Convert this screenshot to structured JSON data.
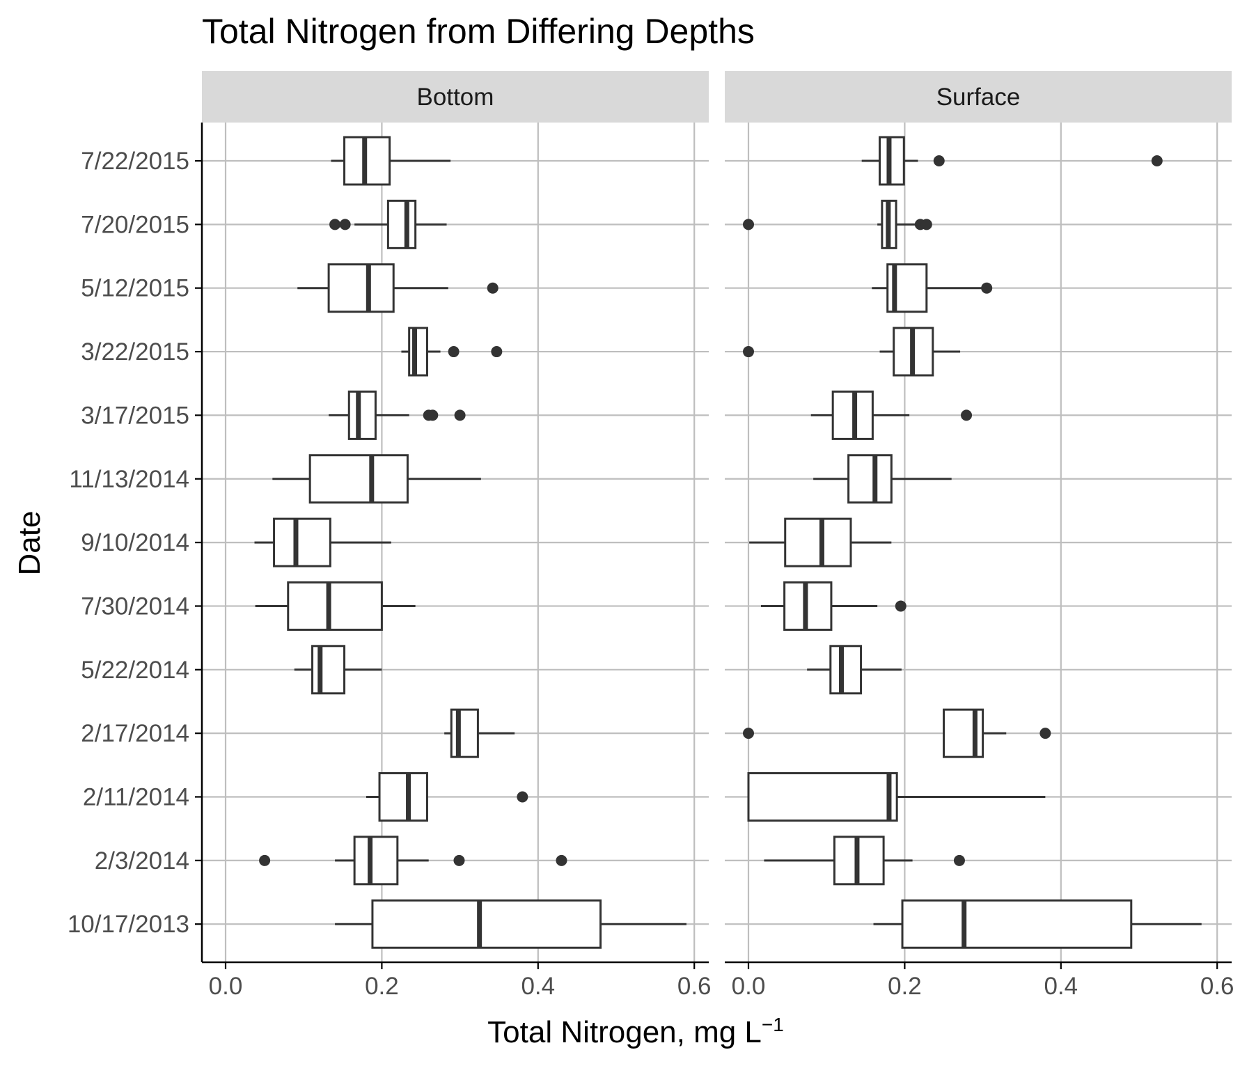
{
  "chart_data": {
    "type": "boxplot",
    "orientation": "horizontal",
    "title": "Total Nitrogen from Differing Depths",
    "xlabel": "Total Nitrogen, mg L",
    "xlabel_superscript": "−1",
    "ylabel": "Date",
    "xlim": [
      -0.03,
      0.61
    ],
    "xticks": [
      0.0,
      0.2,
      0.4,
      0.6
    ],
    "xtick_labels": [
      "0.0",
      "0.2",
      "0.4",
      "0.6"
    ],
    "grid": true,
    "categories": [
      "7/22/2015",
      "7/20/2015",
      "5/12/2015",
      "3/22/2015",
      "3/17/2015",
      "11/13/2014",
      "9/10/2014",
      "7/30/2014",
      "5/22/2014",
      "2/17/2014",
      "2/11/2014",
      "2/3/2014",
      "10/17/2013"
    ],
    "panels": [
      {
        "name": "Bottom",
        "boxes": [
          {
            "category": "7/22/2015",
            "whisker_low": 0.135,
            "q1": 0.152,
            "median": 0.178,
            "q3": 0.21,
            "whisker_high": 0.288,
            "outliers": []
          },
          {
            "category": "7/20/2015",
            "whisker_low": 0.165,
            "q1": 0.208,
            "median": 0.232,
            "q3": 0.243,
            "whisker_high": 0.283,
            "outliers": [
              0.14,
              0.153
            ]
          },
          {
            "category": "5/12/2015",
            "whisker_low": 0.092,
            "q1": 0.132,
            "median": 0.183,
            "q3": 0.215,
            "whisker_high": 0.285,
            "outliers": [
              0.342
            ]
          },
          {
            "category": "3/22/2015",
            "whisker_low": 0.225,
            "q1": 0.235,
            "median": 0.242,
            "q3": 0.258,
            "whisker_high": 0.275,
            "outliers": [
              0.292,
              0.347
            ]
          },
          {
            "category": "3/17/2015",
            "whisker_low": 0.132,
            "q1": 0.158,
            "median": 0.17,
            "q3": 0.192,
            "whisker_high": 0.235,
            "outliers": [
              0.26,
              0.265,
              0.3
            ]
          },
          {
            "category": "11/13/2014",
            "whisker_low": 0.06,
            "q1": 0.108,
            "median": 0.187,
            "q3": 0.233,
            "whisker_high": 0.327,
            "outliers": []
          },
          {
            "category": "9/10/2014",
            "whisker_low": 0.037,
            "q1": 0.062,
            "median": 0.09,
            "q3": 0.134,
            "whisker_high": 0.212,
            "outliers": []
          },
          {
            "category": "7/30/2014",
            "whisker_low": 0.038,
            "q1": 0.08,
            "median": 0.132,
            "q3": 0.2,
            "whisker_high": 0.243,
            "outliers": []
          },
          {
            "category": "5/22/2014",
            "whisker_low": 0.088,
            "q1": 0.111,
            "median": 0.121,
            "q3": 0.152,
            "whisker_high": 0.2,
            "outliers": []
          },
          {
            "category": "2/17/2014",
            "whisker_low": 0.28,
            "q1": 0.289,
            "median": 0.298,
            "q3": 0.323,
            "whisker_high": 0.37,
            "outliers": []
          },
          {
            "category": "2/11/2014",
            "whisker_low": 0.18,
            "q1": 0.197,
            "median": 0.234,
            "q3": 0.258,
            "whisker_high": 0.258,
            "outliers": [
              0.38
            ]
          },
          {
            "category": "2/3/2014",
            "whisker_low": 0.14,
            "q1": 0.165,
            "median": 0.185,
            "q3": 0.22,
            "whisker_high": 0.26,
            "outliers": [
              0.05,
              0.299,
              0.43
            ]
          },
          {
            "category": "10/17/2013",
            "whisker_low": 0.14,
            "q1": 0.188,
            "median": 0.325,
            "q3": 0.48,
            "whisker_high": 0.59,
            "outliers": []
          }
        ]
      },
      {
        "name": "Surface",
        "boxes": [
          {
            "category": "7/22/2015",
            "whisker_low": 0.145,
            "q1": 0.168,
            "median": 0.18,
            "q3": 0.199,
            "whisker_high": 0.217,
            "outliers": [
              0.244,
              0.523
            ]
          },
          {
            "category": "7/20/2015",
            "whisker_low": 0.165,
            "q1": 0.171,
            "median": 0.179,
            "q3": 0.189,
            "whisker_high": 0.218,
            "outliers": [
              0.0,
              0.22,
              0.228
            ]
          },
          {
            "category": "5/12/2015",
            "whisker_low": 0.158,
            "q1": 0.178,
            "median": 0.187,
            "q3": 0.228,
            "whisker_high": 0.303,
            "outliers": [
              0.305
            ]
          },
          {
            "category": "3/22/2015",
            "whisker_low": 0.168,
            "q1": 0.186,
            "median": 0.21,
            "q3": 0.236,
            "whisker_high": 0.271,
            "outliers": [
              0.0
            ]
          },
          {
            "category": "3/17/2015",
            "whisker_low": 0.08,
            "q1": 0.108,
            "median": 0.136,
            "q3": 0.159,
            "whisker_high": 0.206,
            "outliers": [
              0.279
            ]
          },
          {
            "category": "11/13/2014",
            "whisker_low": 0.083,
            "q1": 0.128,
            "median": 0.162,
            "q3": 0.183,
            "whisker_high": 0.26,
            "outliers": []
          },
          {
            "category": "9/10/2014",
            "whisker_low": 0.001,
            "q1": 0.047,
            "median": 0.094,
            "q3": 0.131,
            "whisker_high": 0.183,
            "outliers": []
          },
          {
            "category": "7/30/2014",
            "whisker_low": 0.016,
            "q1": 0.046,
            "median": 0.073,
            "q3": 0.106,
            "whisker_high": 0.165,
            "outliers": [
              0.195
            ]
          },
          {
            "category": "5/22/2014",
            "whisker_low": 0.075,
            "q1": 0.105,
            "median": 0.119,
            "q3": 0.144,
            "whisker_high": 0.196,
            "outliers": []
          },
          {
            "category": "2/17/2014",
            "whisker_low": 0.25,
            "q1": 0.25,
            "median": 0.29,
            "q3": 0.3,
            "whisker_high": 0.33,
            "outliers": [
              0.0,
              0.38
            ]
          },
          {
            "category": "2/11/2014",
            "whisker_low": 0.0,
            "q1": 0.0,
            "median": 0.18,
            "q3": 0.19,
            "whisker_high": 0.38,
            "outliers": []
          },
          {
            "category": "2/3/2014",
            "whisker_low": 0.02,
            "q1": 0.11,
            "median": 0.139,
            "q3": 0.173,
            "whisker_high": 0.21,
            "outliers": [
              0.27
            ]
          },
          {
            "category": "10/17/2013",
            "whisker_low": 0.16,
            "q1": 0.197,
            "median": 0.276,
            "q3": 0.49,
            "whisker_high": 0.58,
            "outliers": []
          }
        ]
      }
    ]
  },
  "colors": {
    "background": "#ffffff",
    "panel_background": "#ffffff",
    "gridline": "#bebebe",
    "strip_background": "#d9d9d9",
    "box_stroke": "#333333",
    "box_fill": "#ffffff",
    "outlier": "#333333",
    "axis_line": "#000000",
    "tick_text": "#4d4d4d"
  }
}
